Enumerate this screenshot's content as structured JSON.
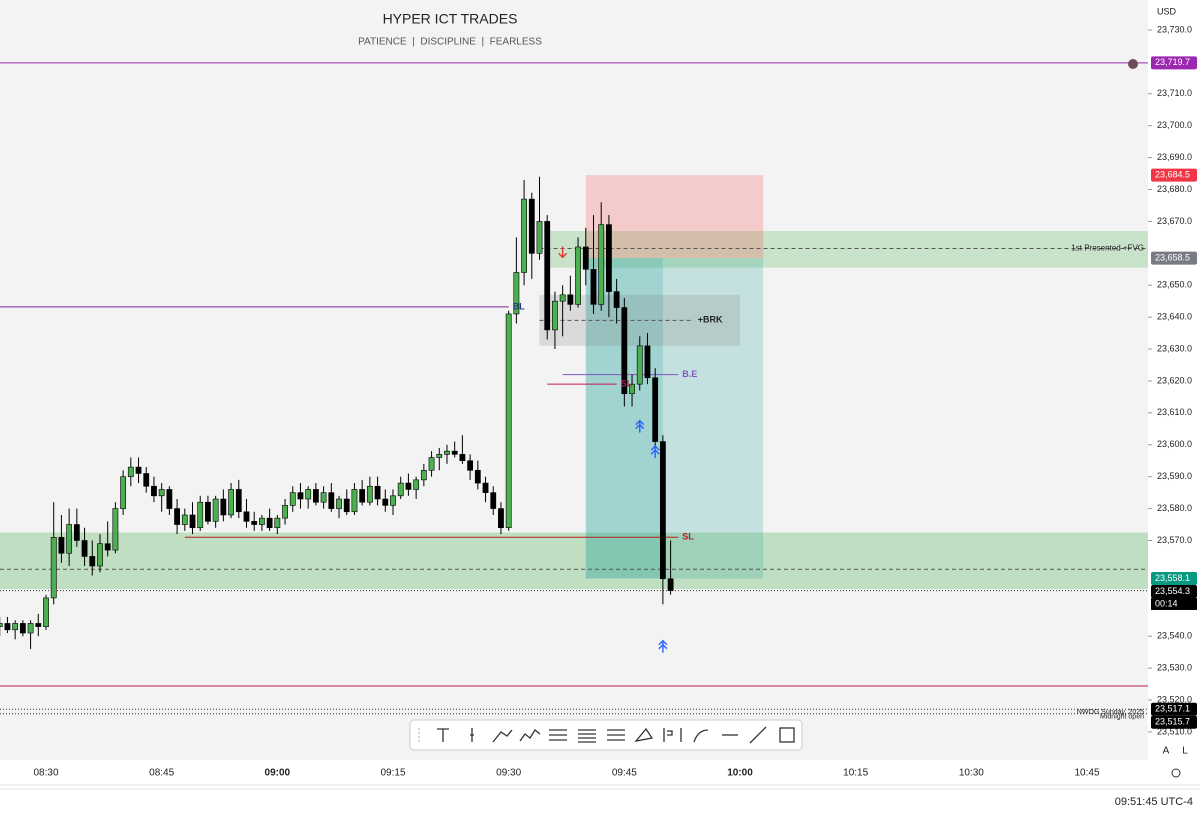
{
  "chart_data": {
    "type": "candlestick",
    "title": "HYPER ICT TRADES",
    "subtitle": "PATIENCE  |  DISCIPLINE  |  FEARLESS",
    "currency": "USD",
    "scale_buttons": [
      "A",
      "L"
    ],
    "status_time": "09:51:45 UTC-4",
    "countdown": "00:14",
    "ylim": [
      23501.2,
      23739.4
    ],
    "yticks": [
      {
        "value": 23730,
        "label": "23,730.0"
      },
      {
        "value": 23710,
        "label": "23,710.0"
      },
      {
        "value": 23700,
        "label": "23,700.0"
      },
      {
        "value": 23690,
        "label": "23,690.0"
      },
      {
        "value": 23680,
        "label": "23,680.0"
      },
      {
        "value": 23670,
        "label": "23,670.0"
      },
      {
        "value": 23650,
        "label": "23,650.0"
      },
      {
        "value": 23640,
        "label": "23,640.0"
      },
      {
        "value": 23630,
        "label": "23,630.0"
      },
      {
        "value": 23620,
        "label": "23,620.0"
      },
      {
        "value": 23610,
        "label": "23,610.0"
      },
      {
        "value": 23600,
        "label": "23,600.0"
      },
      {
        "value": 23590,
        "label": "23,590.0"
      },
      {
        "value": 23580,
        "label": "23,580.0"
      },
      {
        "value": 23570,
        "label": "23,570.0"
      },
      {
        "value": 23540,
        "label": "23,540.0"
      },
      {
        "value": 23530,
        "label": "23,530.0"
      },
      {
        "value": 23520,
        "label": "23,520.0"
      },
      {
        "value": 23510,
        "label": "23,510.0"
      }
    ],
    "xticks": [
      "08:30",
      "08:45",
      "09:00",
      "09:15",
      "09:30",
      "09:45",
      "10:00",
      "10:15",
      "10:30",
      "10:45"
    ],
    "up_color": "#4caf50",
    "down_color": "#000000",
    "x": [
      "08:24",
      "08:25",
      "08:26",
      "08:27",
      "08:28",
      "08:29",
      "08:30",
      "08:31",
      "08:32",
      "08:33",
      "08:34",
      "08:35",
      "08:36",
      "08:37",
      "08:38",
      "08:39",
      "08:40",
      "08:41",
      "08:42",
      "08:43",
      "08:44",
      "08:45",
      "08:46",
      "08:47",
      "08:48",
      "08:49",
      "08:50",
      "08:51",
      "08:52",
      "08:53",
      "08:54",
      "08:55",
      "08:56",
      "08:57",
      "08:58",
      "08:59",
      "09:00",
      "09:01",
      "09:02",
      "09:03",
      "09:04",
      "09:05",
      "09:06",
      "09:07",
      "09:08",
      "09:09",
      "09:10",
      "09:11",
      "09:12",
      "09:13",
      "09:14",
      "09:15",
      "09:16",
      "09:17",
      "09:18",
      "09:19",
      "09:20",
      "09:21",
      "09:22",
      "09:23",
      "09:24",
      "09:25",
      "09:26",
      "09:27",
      "09:28",
      "09:29",
      "09:30",
      "09:31",
      "09:32",
      "09:33",
      "09:34",
      "09:35",
      "09:36",
      "09:37",
      "09:38",
      "09:39",
      "09:40",
      "09:41",
      "09:42",
      "09:43",
      "09:44",
      "09:45",
      "09:46",
      "09:47",
      "09:48",
      "09:49",
      "09:50",
      "09:51"
    ],
    "open": [
      23543,
      23544,
      23542,
      23544,
      23541,
      23544,
      23543,
      23552,
      23571,
      23566,
      23575,
      23570,
      23565,
      23562,
      23569,
      23567,
      23580,
      23590,
      23593,
      23591,
      23587,
      23584,
      23586,
      23580,
      23575,
      23578,
      23574,
      23582,
      23576,
      23583,
      23578,
      23586,
      23579,
      23576,
      23575,
      23577,
      23574,
      23577,
      23581,
      23585,
      23583,
      23586,
      23582,
      23585,
      23580,
      23583,
      23579,
      23586,
      23582,
      23587,
      23583,
      23581,
      23584,
      23588,
      23586,
      23589,
      23592,
      23596,
      23597,
      23598,
      23597,
      23595,
      23592,
      23588,
      23585,
      23580,
      23574,
      23641,
      23654,
      23677,
      23660,
      23670,
      23636,
      23645,
      23647,
      23644,
      23662,
      23655,
      23644,
      23669,
      23648,
      23643,
      23616,
      23619,
      23631,
      23621,
      23601,
      23558
    ],
    "high": [
      23546,
      23546,
      23545,
      23545,
      23545,
      23547,
      23553,
      23582,
      23578,
      23580,
      23580,
      23574,
      23570,
      23572,
      23576,
      23582,
      23592,
      23596,
      23596,
      23593,
      23590,
      23588,
      23587,
      23583,
      23580,
      23582,
      23584,
      23584,
      23584,
      23586,
      23588,
      23589,
      23583,
      23579,
      23578,
      23580,
      23578,
      23583,
      23587,
      23588,
      23587,
      23588,
      23587,
      23588,
      23584,
      23586,
      23588,
      23589,
      23590,
      23590,
      23586,
      23586,
      23590,
      23591,
      23590,
      23594,
      23598,
      23599,
      23600,
      23601,
      23603,
      23597,
      23595,
      23590,
      23587,
      23582,
      23642,
      23665,
      23683,
      23679,
      23684,
      23672,
      23648,
      23650,
      23653,
      23665,
      23668,
      23672,
      23676,
      23672,
      23652,
      23646,
      23622,
      23634,
      23635,
      23624,
      23603,
      23570
    ],
    "low": [
      23540,
      23541,
      23539,
      23540,
      23536,
      23540,
      23542,
      23550,
      23563,
      23562,
      23568,
      23562,
      23559,
      23560,
      23565,
      23566,
      23578,
      23587,
      23588,
      23585,
      23582,
      23579,
      23578,
      23572,
      23573,
      23572,
      23573,
      23575,
      23574,
      23576,
      23577,
      23577,
      23574,
      23573,
      23573,
      23573,
      23572,
      23575,
      23579,
      23580,
      23580,
      23581,
      23580,
      23579,
      23577,
      23578,
      23578,
      23581,
      23581,
      23581,
      23579,
      23578,
      23583,
      23584,
      23583,
      23587,
      23590,
      23592,
      23594,
      23596,
      23594,
      23589,
      23586,
      23582,
      23578,
      23572,
      23573,
      23638,
      23650,
      23652,
      23658,
      23633,
      23630,
      23634,
      23642,
      23643,
      23650,
      23641,
      23642,
      23640,
      23638,
      23612,
      23612,
      23617,
      23619,
      23599,
      23550,
      23553
    ],
    "close": [
      23544,
      23542,
      23544,
      23541,
      23544,
      23543,
      23552,
      23571,
      23566,
      23575,
      23570,
      23565,
      23562,
      23569,
      23567,
      23580,
      23590,
      23593,
      23591,
      23587,
      23584,
      23586,
      23580,
      23575,
      23578,
      23574,
      23582,
      23576,
      23583,
      23578,
      23586,
      23579,
      23576,
      23575,
      23577,
      23574,
      23577,
      23581,
      23585,
      23583,
      23586,
      23582,
      23585,
      23580,
      23583,
      23579,
      23586,
      23582,
      23587,
      23583,
      23581,
      23584,
      23588,
      23586,
      23589,
      23592,
      23596,
      23597,
      23598,
      23597,
      23595,
      23592,
      23588,
      23585,
      23580,
      23574,
      23641,
      23654,
      23677,
      23660,
      23670,
      23636,
      23645,
      23647,
      23644,
      23662,
      23655,
      23644,
      23669,
      23648,
      23643,
      23616,
      23619,
      23631,
      23621,
      23601,
      23558,
      23554.3
    ],
    "zones": [
      {
        "top": 23667,
        "bottom": 23655.5,
        "from": "09:35",
        "color": "rgba(76,175,80,0.25)"
      },
      {
        "top": 23572.5,
        "bottom": 23554.8,
        "color": "rgba(76,175,80,0.3)"
      },
      {
        "top": 23684.5,
        "bottom": 23658.5,
        "from": "09:40",
        "to": "10:03",
        "color": "rgba(239,83,80,0.25)"
      },
      {
        "top": 23658.5,
        "bottom": 23558.1,
        "from": "09:40",
        "to": "10:03",
        "color": "rgba(38,166,154,0.22)"
      },
      {
        "top": 23658.5,
        "bottom": 23558.1,
        "from": "09:40",
        "to": "09:50",
        "color": "rgba(38,166,154,0.22)"
      },
      {
        "top": 23647,
        "bottom": 23631,
        "from": "09:34",
        "to": "10:00",
        "color": "rgba(120,120,120,0.2)"
      }
    ],
    "lines": [
      {
        "price": 23719.7,
        "color": "#9c27b0",
        "style": "solid"
      },
      {
        "price": 23643.2,
        "to": "09:30",
        "color": "#7b1fa2",
        "style": "solid",
        "label": "BL",
        "label_color": "#283593"
      },
      {
        "price": 23524.4,
        "color": "#c2185b",
        "style": "solid"
      },
      {
        "price": 23571,
        "from": "08:48",
        "to": "09:52",
        "color": "#b71c1c",
        "style": "solid",
        "label": "SL",
        "label_color": "#b71c1c"
      },
      {
        "price": 23661.5,
        "from": "09:34",
        "color": "#555555",
        "style": "dashed",
        "label": "1st Presented +FVG",
        "label_color": "#222222"
      },
      {
        "price": 23561,
        "color": "#555555",
        "style": "dashed"
      },
      {
        "price": 23639,
        "from": "09:34",
        "to": "09:54",
        "color": "#555555",
        "style": "dashed",
        "label": "+BRK",
        "label_color": "#222222"
      },
      {
        "price": 23622,
        "from": "09:37",
        "to": "09:52",
        "color": "#7e57c2",
        "style": "solid",
        "label": "B.E",
        "label_color": "#7e57c2"
      },
      {
        "price": 23619,
        "from": "09:35",
        "to": "09:44",
        "color": "#c2185b",
        "style": "solid",
        "label": "SL",
        "label_color": "#c2185b"
      },
      {
        "price": 23554.3,
        "color": "#333333",
        "style": "dotted"
      },
      {
        "price": 23517.1,
        "color": "#333333",
        "style": "dotted",
        "label": "NWOG Sunday, 2025",
        "label_color": "#222222"
      },
      {
        "price": 23515.7,
        "color": "#333333",
        "style": "dotted",
        "label": "Midnight open",
        "label_color": "#222222"
      }
    ],
    "markers": [
      {
        "t": "09:37",
        "price": 23660,
        "kind": "down",
        "color": "#e53935"
      },
      {
        "t": "09:47",
        "price": 23606,
        "kind": "up",
        "color": "#2962ff"
      },
      {
        "t": "09:49",
        "price": 23598,
        "kind": "up",
        "color": "#2962ff"
      },
      {
        "t": "09:50",
        "price": 23537,
        "kind": "up",
        "color": "#2962ff"
      }
    ],
    "price_labels": [
      {
        "value": 23719.7,
        "label": "23,719.7",
        "color": "#9c27b0"
      },
      {
        "value": 23684.5,
        "label": "23,684.5",
        "color": "#f23645"
      },
      {
        "value": 23658.5,
        "label": "23,658.5",
        "color": "#787b86"
      },
      {
        "value": 23558.1,
        "label": "23,558.1",
        "color": "#089981"
      },
      {
        "value": 23554.3,
        "label": "23,554.3",
        "color": "#000000"
      },
      {
        "value": 23517.1,
        "label": "23,517.1",
        "color": "#000000"
      },
      {
        "value": 23515.7,
        "label": "23,515.7",
        "color": "#000000"
      }
    ]
  }
}
